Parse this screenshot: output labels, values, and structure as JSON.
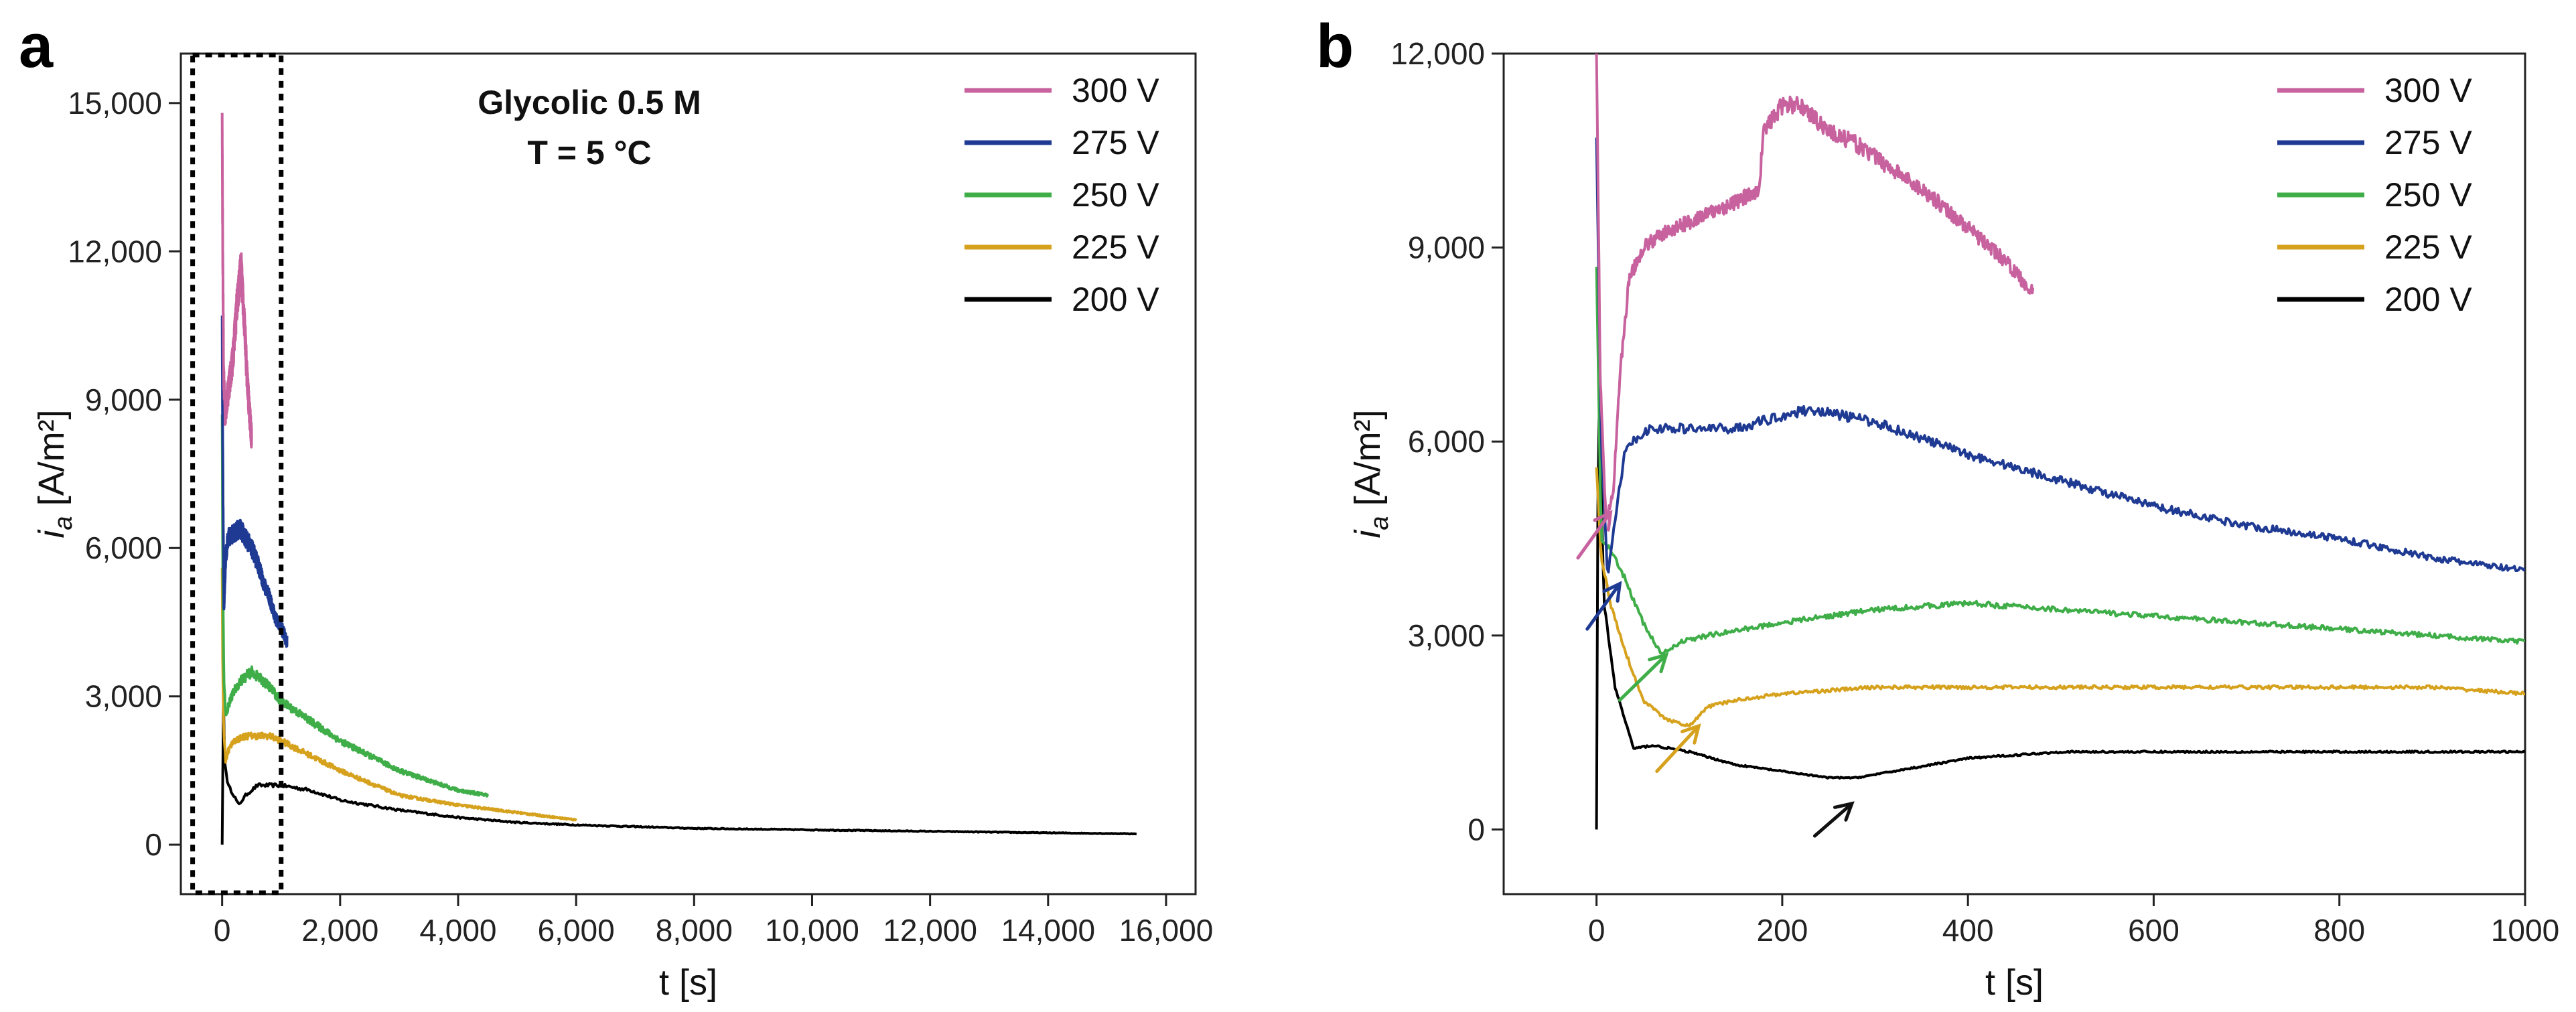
{
  "chart_data": [
    {
      "panel": "a",
      "type": "line",
      "xlabel": "t [s]",
      "ylabel_main": "i",
      "ylabel_sub": "a",
      "ylabel_unit": "[A/m²]",
      "xlim": [
        -700,
        16500
      ],
      "ylim": [
        -1000,
        16000
      ],
      "xticks": [
        0,
        2000,
        4000,
        6000,
        8000,
        10000,
        12000,
        14000,
        16000
      ],
      "xtick_labels": [
        "0",
        "2,000",
        "4,000",
        "6,000",
        "8,000",
        "10,000",
        "12,000",
        "14,000",
        "16,000"
      ],
      "yticks": [
        0,
        3000,
        6000,
        9000,
        12000,
        15000
      ],
      "ytick_labels": [
        "0",
        "3,000",
        "6,000",
        "9,000",
        "12,000",
        "15,000"
      ],
      "annotation_line1": "Glycolic 0.5 M",
      "annotation_line2": "T = 5 °C",
      "highlight_box": {
        "x0": -500,
        "x1": 1000,
        "y0": -1000,
        "y1": 16000
      },
      "series": [
        {
          "name": "300 V",
          "color": "#c8629f",
          "x": [
            0,
            10,
            25,
            50,
            80,
            120,
            180,
            250,
            320,
            380,
            420,
            460,
            500
          ],
          "y": [
            14800,
            12000,
            9500,
            8700,
            9000,
            9300,
            9800,
            10900,
            11700,
            10500,
            9500,
            8800,
            8200
          ]
        },
        {
          "name": "275 V",
          "color": "#1f3a93",
          "x": [
            0,
            10,
            30,
            60,
            100,
            200,
            300,
            400,
            500,
            600,
            700,
            800,
            900,
            1000,
            1100
          ],
          "y": [
            10700,
            8000,
            4800,
            5800,
            6200,
            6300,
            6400,
            6200,
            6000,
            5700,
            5300,
            5000,
            4600,
            4400,
            4100
          ]
        },
        {
          "name": "250 V",
          "color": "#3fae49",
          "x": [
            0,
            10,
            30,
            60,
            100,
            200,
            300,
            400,
            500,
            600,
            800,
            1000,
            1500,
            2000,
            2500,
            3000,
            3500,
            4000,
            4500
          ],
          "y": [
            8700,
            5500,
            3400,
            2600,
            2800,
            3100,
            3300,
            3400,
            3500,
            3400,
            3200,
            2900,
            2500,
            2100,
            1800,
            1500,
            1300,
            1100,
            1000
          ]
        },
        {
          "name": "225 V",
          "color": "#d6a21e",
          "x": [
            0,
            10,
            30,
            60,
            100,
            200,
            400,
            600,
            800,
            1000,
            1500,
            2000,
            3000,
            4000,
            5000,
            6000
          ],
          "y": [
            5600,
            3500,
            2200,
            1700,
            1900,
            2100,
            2200,
            2200,
            2200,
            2100,
            1800,
            1500,
            1000,
            800,
            650,
            500
          ]
        },
        {
          "name": "200 V",
          "color": "#000000",
          "x": [
            0,
            5,
            15,
            40,
            100,
            200,
            280,
            400,
            600,
            800,
            1000,
            1500,
            2000,
            3000,
            4000,
            5000,
            6000,
            8000,
            10000,
            12000,
            14000,
            15500
          ],
          "y": [
            0,
            7000,
            3500,
            1700,
            1200,
            1000,
            800,
            1000,
            1200,
            1200,
            1200,
            1100,
            900,
            700,
            550,
            450,
            400,
            330,
            300,
            270,
            240,
            220
          ]
        }
      ]
    },
    {
      "panel": "b",
      "type": "line",
      "xlabel": "t [s]",
      "ylabel_main": "i",
      "ylabel_sub": "a",
      "ylabel_unit": "[A/m²]",
      "xlim": [
        -100,
        1000
      ],
      "ylim": [
        -1000,
        12000
      ],
      "xticks": [
        0,
        200,
        400,
        600,
        800,
        1000
      ],
      "xtick_labels": [
        "0",
        "200",
        "400",
        "600",
        "800",
        "1000"
      ],
      "yticks": [
        0,
        3000,
        6000,
        9000,
        12000
      ],
      "ytick_labels": [
        "0",
        "3,000",
        "6,000",
        "9,000",
        "12,000"
      ],
      "series": [
        {
          "name": "300 V",
          "color": "#c8629f",
          "x": [
            0,
            4,
            10,
            18,
            25,
            35,
            50,
            70,
            100,
            150,
            175,
            180,
            200,
            220,
            250,
            280,
            320,
            360,
            400,
            440,
            470
          ],
          "y": [
            12000,
            7000,
            4800,
            5200,
            7000,
            8500,
            9000,
            9200,
            9400,
            9700,
            9900,
            10800,
            11200,
            11200,
            10800,
            10600,
            10200,
            9800,
            9300,
            8800,
            8300
          ]
        },
        {
          "name": "275 V",
          "color": "#1f3a93",
          "x": [
            0,
            5,
            12,
            20,
            30,
            45,
            60,
            100,
            150,
            200,
            230,
            300,
            400,
            500,
            600,
            700,
            800,
            900,
            1000
          ],
          "y": [
            10700,
            6000,
            3900,
            4800,
            5800,
            6100,
            6200,
            6200,
            6200,
            6400,
            6500,
            6300,
            5800,
            5400,
            5000,
            4700,
            4500,
            4200,
            4000
          ]
        },
        {
          "name": "250 V",
          "color": "#3fae49",
          "x": [
            0,
            5,
            15,
            30,
            50,
            70,
            90,
            120,
            200,
            300,
            400,
            500,
            600,
            700,
            800,
            900,
            1000
          ],
          "y": [
            8700,
            4500,
            4300,
            3900,
            3200,
            2700,
            2900,
            3000,
            3200,
            3400,
            3500,
            3400,
            3300,
            3200,
            3100,
            3000,
            2900
          ]
        },
        {
          "name": "225 V",
          "color": "#d6a21e",
          "x": [
            0,
            5,
            15,
            30,
            50,
            75,
            100,
            120,
            150,
            200,
            300,
            400,
            500,
            600,
            700,
            800,
            900,
            1000
          ],
          "y": [
            5600,
            4200,
            3500,
            2800,
            2000,
            1700,
            1600,
            1900,
            2000,
            2100,
            2200,
            2200,
            2200,
            2200,
            2200,
            2200,
            2200,
            2100
          ]
        },
        {
          "name": "200 V",
          "color": "#000000",
          "x": [
            0,
            2,
            8,
            20,
            40,
            60,
            100,
            150,
            200,
            250,
            280,
            320,
            400,
            500,
            600,
            700,
            800,
            900,
            1000
          ],
          "y": [
            0,
            7000,
            3500,
            2200,
            1250,
            1300,
            1200,
            1000,
            900,
            800,
            800,
            900,
            1100,
            1200,
            1200,
            1200,
            1200,
            1200,
            1200
          ]
        }
      ],
      "arrows": [
        {
          "series": "300 V",
          "color": "#c8629f",
          "x_from": -20,
          "y_from": 4200,
          "x_to": 15,
          "y_to": 4900
        },
        {
          "series": "275 V",
          "color": "#1f3a93",
          "x_from": -10,
          "y_from": 3100,
          "x_to": 25,
          "y_to": 3800
        },
        {
          "series": "250 V",
          "color": "#3fae49",
          "x_from": 25,
          "y_from": 2000,
          "x_to": 75,
          "y_to": 2700
        },
        {
          "series": "225 V",
          "color": "#d6a21e",
          "x_from": 65,
          "y_from": 900,
          "x_to": 110,
          "y_to": 1600
        },
        {
          "series": "200 V",
          "color": "#111111",
          "x_from": 235,
          "y_from": -100,
          "x_to": 275,
          "y_to": 400
        }
      ]
    }
  ]
}
